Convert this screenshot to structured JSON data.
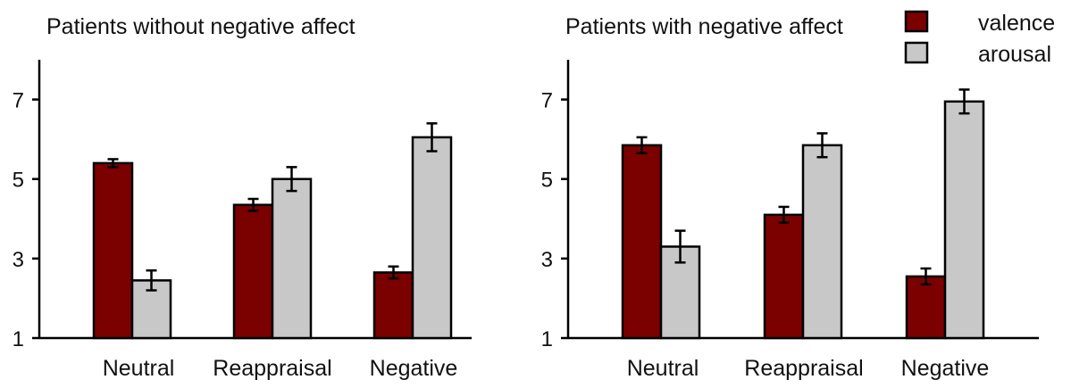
{
  "colors": {
    "valence": "#7b0000",
    "arousal": "#c8c8c8",
    "axis": "#000000"
  },
  "legend": {
    "items": [
      {
        "label": "valence",
        "color": "#7b0000"
      },
      {
        "label": "arousal",
        "color": "#c8c8c8"
      }
    ]
  },
  "chart_data": [
    {
      "type": "bar",
      "title": "Patients without negative affect",
      "categories": [
        "Neutral",
        "Reappraisal",
        "Negative"
      ],
      "ylim": [
        1,
        8
      ],
      "yticks": [
        "1",
        "3",
        "5",
        "7"
      ],
      "series": [
        {
          "name": "valence",
          "values": [
            5.4,
            4.35,
            2.65
          ],
          "errors": [
            0.1,
            0.15,
            0.15
          ]
        },
        {
          "name": "arousal",
          "values": [
            2.45,
            5.0,
            6.05
          ],
          "errors": [
            0.25,
            0.3,
            0.35
          ]
        }
      ]
    },
    {
      "type": "bar",
      "title": "Patients with negative affect",
      "categories": [
        "Neutral",
        "Reappraisal",
        "Negative"
      ],
      "ylim": [
        1,
        8
      ],
      "yticks": [
        "1",
        "3",
        "5",
        "7"
      ],
      "series": [
        {
          "name": "valence",
          "values": [
            5.85,
            4.1,
            2.55
          ],
          "errors": [
            0.2,
            0.2,
            0.2
          ]
        },
        {
          "name": "arousal",
          "values": [
            3.3,
            5.85,
            6.95
          ],
          "errors": [
            0.4,
            0.3,
            0.3
          ]
        }
      ]
    }
  ]
}
